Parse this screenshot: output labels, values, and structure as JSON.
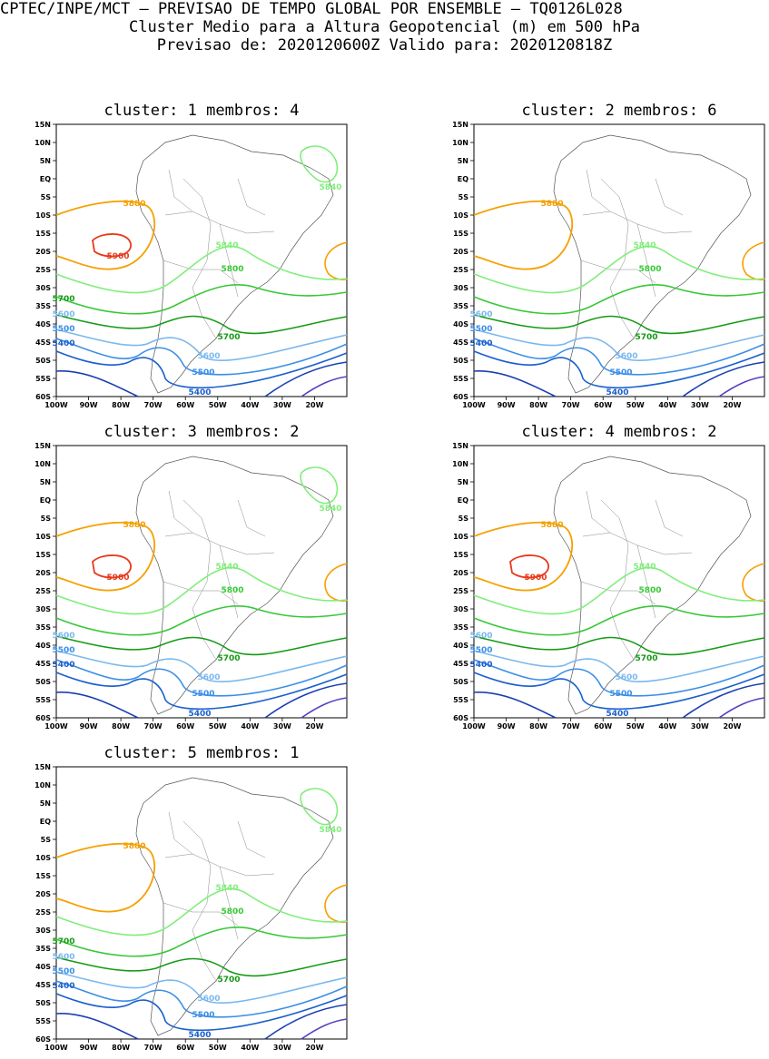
{
  "header": {
    "line1": "CPTEC/INPE/MCT – PREVISAO DE TEMPO GLOBAL POR ENSEMBLE – TQ0126L028",
    "line2": "Cluster Medio para a Altura Geopotencial (m) em 500 hPa",
    "line3": "Previsao de: 2020120600Z    Valido para: 2020120818Z"
  },
  "axes": {
    "lat_labels": [
      "15N",
      "10N",
      "5N",
      "EQ",
      "5S",
      "10S",
      "15S",
      "20S",
      "25S",
      "30S",
      "35S",
      "40S",
      "45S",
      "50S",
      "55S",
      "60S"
    ],
    "lon_labels": [
      "100W",
      "90W",
      "80W",
      "70W",
      "60W",
      "50W",
      "40W",
      "30W",
      "20W"
    ]
  },
  "contour_levels": {
    "5900": "#e8381a",
    "5880": "#f5a000",
    "5840": "#80ee7a",
    "5800": "#38c838",
    "5700": "#159a15",
    "5600": "#7ab8ee",
    "5500": "#3a8ee6",
    "5400": "#1a60cc",
    "deep1": "#1a40b0",
    "deep2": "#5a40c0"
  },
  "panels": [
    {
      "cluster_label": "cluster:",
      "cluster": "1",
      "membros_label": "membros:",
      "membros": "4",
      "labels": {
        "c5900": "5900",
        "c5880": "5880",
        "c5840": "5840",
        "c5840b": "5840",
        "c5800": "5800",
        "c5700": "5700",
        "c5600": "5600",
        "c5500": "5500",
        "c5400": "5400",
        "l5700": "5700",
        "l5600": "5600",
        "l5500": "5500",
        "l5400": "5400"
      }
    },
    {
      "cluster_label": "cluster:",
      "cluster": "2",
      "membros_label": "membros:",
      "membros": "6",
      "labels": {
        "c5900": "",
        "c5880": "5880",
        "c5840": "5840",
        "c5840b": "",
        "c5800": "5800",
        "c5700": "5700",
        "c5600": "5600",
        "c5500": "5500",
        "c5400": "5400",
        "l5700": "",
        "l5600": "5600",
        "l5500": "5500",
        "l5400": "5400"
      }
    },
    {
      "cluster_label": "cluster:",
      "cluster": "3",
      "membros_label": "membros:",
      "membros": "2",
      "labels": {
        "c5900": "5900",
        "c5880": "5880",
        "c5840": "5840",
        "c5840b": "5840",
        "c5800": "5800",
        "c5700": "5700",
        "c5600": "5600",
        "c5500": "5500",
        "c5400": "5400",
        "l5700": "",
        "l5600": "5600",
        "l5500": "5500",
        "l5400": "5400"
      }
    },
    {
      "cluster_label": "cluster:",
      "cluster": "4",
      "membros_label": "membros:",
      "membros": "2",
      "labels": {
        "c5900": "5900",
        "c5880": "5880",
        "c5840": "5840",
        "c5840b": "",
        "c5800": "5800",
        "c5700": "5700",
        "c5600": "5600",
        "c5500": "5500",
        "c5400": "5400",
        "l5700": "",
        "l5600": "5600",
        "l5500": "5500",
        "l5400": "5400"
      }
    },
    {
      "cluster_label": "cluster:",
      "cluster": "5",
      "membros_label": "membros:",
      "membros": "1",
      "labels": {
        "c5900": "",
        "c5880": "5880",
        "c5840": "5840",
        "c5840b": "5840",
        "c5800": "5800",
        "c5700": "5700",
        "c5600": "5600",
        "c5500": "5500",
        "c5400": "5400",
        "l5700": "5700",
        "l5600": "5600",
        "l5500": "5500",
        "l5400": "5400"
      }
    }
  ]
}
